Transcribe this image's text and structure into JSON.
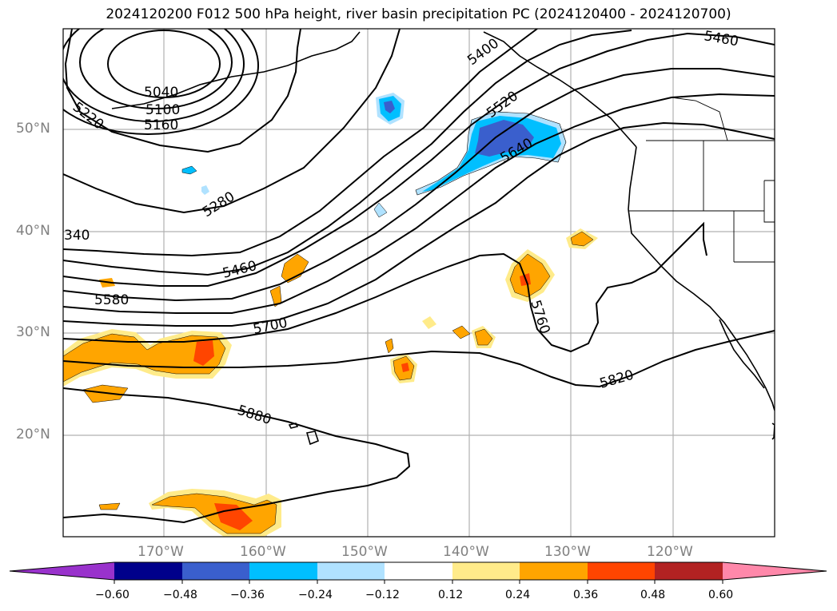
{
  "title": "2024120200 F012 500 hPa height, river basin precipitation PC (2024120400 - 2024120700)",
  "lat_labels": [
    "50°N",
    "40°N",
    "30°N",
    "20°N"
  ],
  "lon_labels": [
    "170°W",
    "160°W",
    "150°W",
    "140°W",
    "130°W",
    "120°W"
  ],
  "contour_labels": [
    "5040",
    "5100",
    "5160",
    "5220",
    "5280",
    "340",
    "5400",
    "5460",
    "5460",
    "5520",
    "5580",
    "5640",
    "5700",
    "5760",
    "5820",
    "5880"
  ],
  "colorbar": {
    "ticks": [
      "−0.60",
      "−0.48",
      "−0.36",
      "−0.24",
      "−0.12",
      "0.12",
      "0.24",
      "0.36",
      "0.48",
      "0.60"
    ],
    "colors": [
      "#9932cc",
      "#00008b",
      "#3a5fcd",
      "#00bfff",
      "#b0e2ff",
      "#ffffff",
      "#ffeb8a",
      "#ffa500",
      "#ff4500",
      "#b22222",
      "#ff88aa"
    ]
  },
  "colors": {
    "neg_dark": "#3a5fcd",
    "neg_mid": "#00bfff",
    "neg_light": "#b0e2ff",
    "pos_light": "#ffeb8a",
    "pos_mid": "#ffa500",
    "pos_dark": "#ff4500"
  }
}
